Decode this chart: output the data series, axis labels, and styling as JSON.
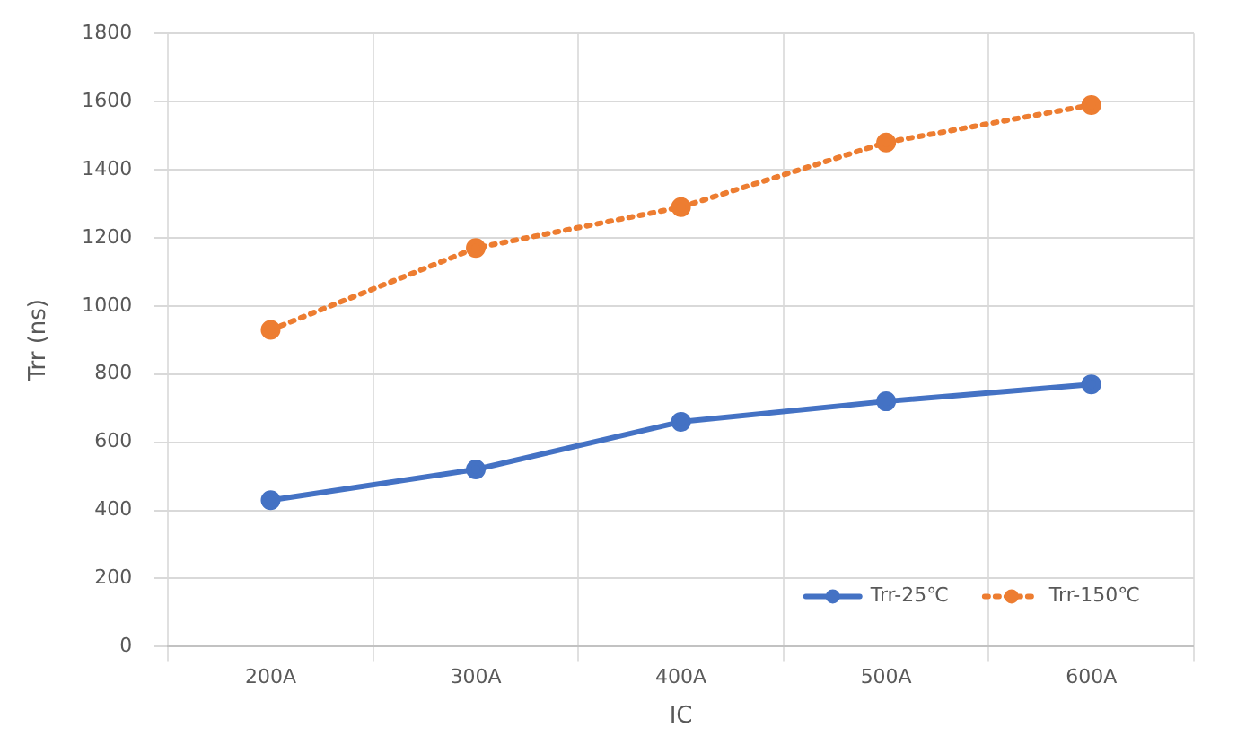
{
  "chart_data": {
    "type": "line",
    "xlabel": "IC",
    "ylabel": "Trr (ns)",
    "categories": [
      "200A",
      "300A",
      "400A",
      "500A",
      "600A"
    ],
    "series": [
      {
        "name": "Trr-25℃",
        "color": "#4472c4",
        "values": [
          430,
          520,
          660,
          720,
          770
        ],
        "line_style": "solid"
      },
      {
        "name": "Trr-150℃",
        "color": "#ed7d31",
        "values": [
          930,
          1170,
          1290,
          1480,
          1590
        ],
        "line_style": "dotted"
      }
    ],
    "ylim": [
      0,
      1800
    ],
    "yticks": [
      0,
      200,
      400,
      600,
      800,
      1000,
      1200,
      1400,
      1600,
      1800
    ],
    "grid": true,
    "legend": "bottom right",
    "marker": "circle"
  }
}
